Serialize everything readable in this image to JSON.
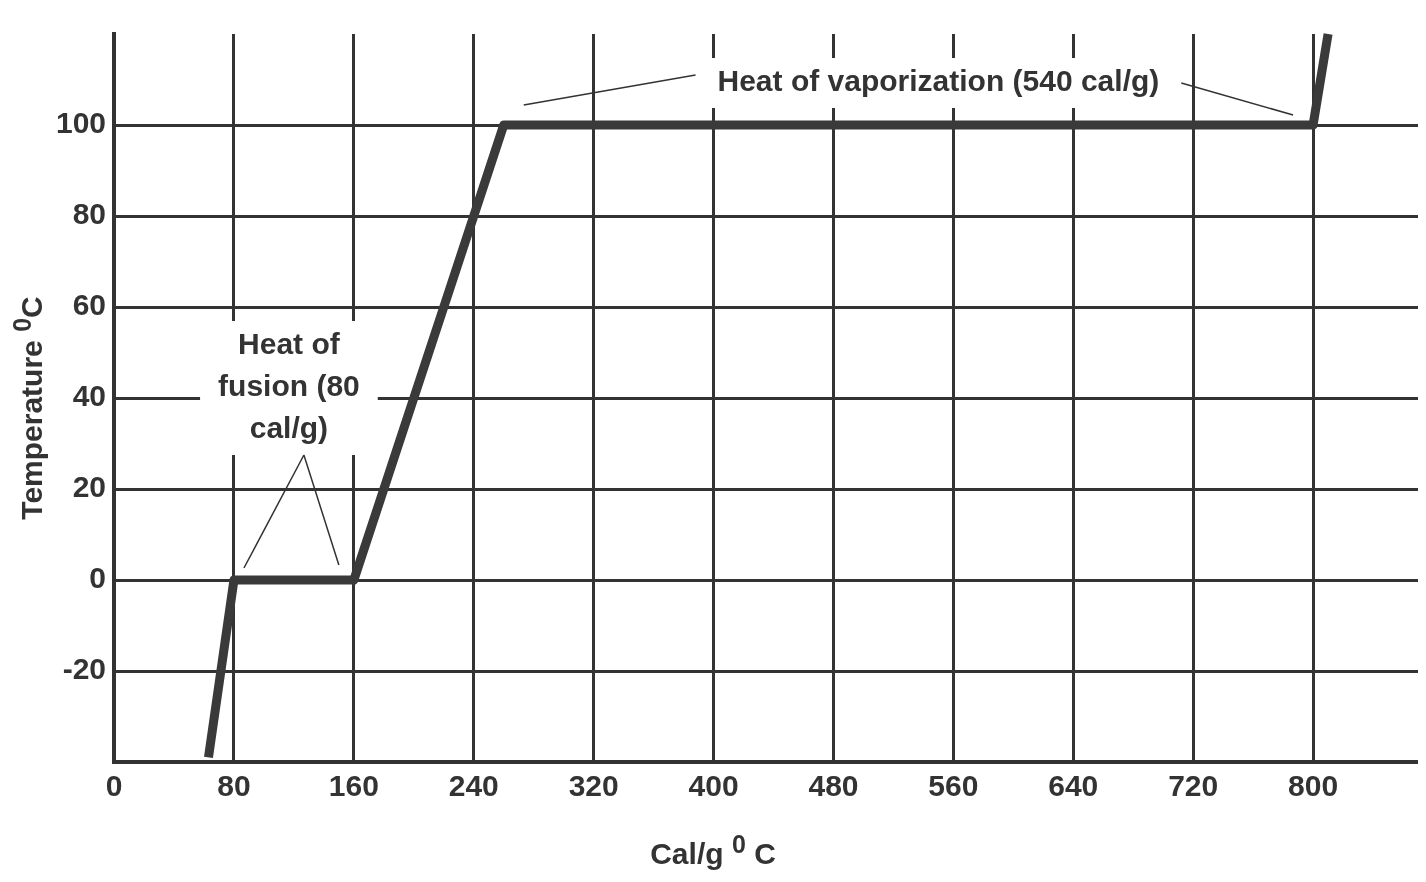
{
  "chart_data": {
    "type": "line",
    "xlabel": "Cal/g $^{0}$ C",
    "ylabel": "Temperature $^{0}$C",
    "x": [
      63,
      80,
      160,
      260,
      800,
      810
    ],
    "series": [
      {
        "color": "#3a3a3a",
        "values": [
          -39,
          0,
          0,
          100,
          100,
          120
        ]
      }
    ],
    "xlim": [
      0,
      870
    ],
    "xticks": [
      0,
      80,
      160,
      240,
      320,
      400,
      480,
      560,
      640,
      720,
      800
    ],
    "ylim": [
      -40,
      120
    ],
    "yticks": [
      -20,
      0,
      20,
      40,
      60,
      80,
      100
    ],
    "grid": true,
    "legend": false,
    "marker": "none",
    "line_style": "solid",
    "annotations": [
      "Heat of fusion (80 cal/g)",
      "Heat of vaporization (540 cal/g)"
    ]
  }
}
